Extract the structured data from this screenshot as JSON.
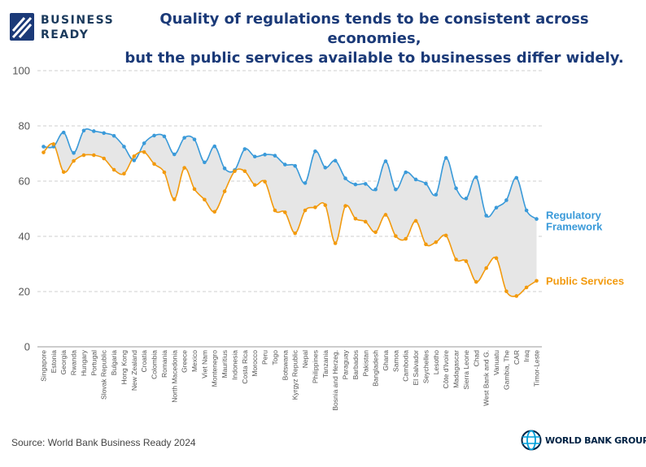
{
  "header": {
    "logo_line1": "BUSINESS",
    "logo_line2": "READY",
    "title_line1": "Quality of regulations tends to be consistent across economies,",
    "title_line2": "but the public services available to businesses differ widely."
  },
  "footer": {
    "source": "Source: World Bank Business Ready 2024",
    "wbg_label": "WORLD BANK GROUP"
  },
  "colors": {
    "regulatory": "#3a9ad9",
    "public": "#f29a0e",
    "fill": "#e6e6e6",
    "title": "#1b3a78"
  },
  "chart_data": {
    "type": "line",
    "ylim": [
      0,
      100
    ],
    "yticks": [
      0,
      20,
      40,
      60,
      80,
      100
    ],
    "grid": true,
    "categories": [
      "Singapore",
      "Estonia",
      "Georgia",
      "Rwanda",
      "Hungary",
      "Portugal",
      "Slovak Republic",
      "Bulgaria",
      "Hong Kong",
      "New Zealand",
      "Croatia",
      "Colombia",
      "Romania",
      "North Macedonia",
      "Greece",
      "Mexico",
      "Viet Nam",
      "Montenegro",
      "Mauritius",
      "Indonesia",
      "Costa Rica",
      "Morocco",
      "Peru",
      "Togo",
      "Botswana",
      "Kyrgyz Republic",
      "Nepal",
      "Philippines",
      "Tanzania",
      "Bosnia and Herzeg.",
      "Paraguay",
      "Barbados",
      "Pakistan",
      "Bangladesh",
      "Ghana",
      "Samoa",
      "Cambodia",
      "El Salvador",
      "Seychelles",
      "Lesotho",
      "Côte d'Ivoire",
      "Madagascar",
      "Sierra Leone",
      "Chad",
      "West Bank and G.",
      "Vanuatu",
      "Gambia, The",
      "CAR",
      "Iraq",
      "Timor-Leste"
    ],
    "series": [
      {
        "name": "Regulatory Framework",
        "values": [
          72.5,
          72.5,
          77.6,
          70.2,
          78.3,
          78.1,
          77.4,
          76.4,
          72.5,
          67.5,
          73.7,
          76.5,
          76.2,
          69.7,
          75.7,
          75.1,
          66.8,
          72.6,
          64.6,
          64.0,
          71.6,
          68.9,
          69.6,
          69.2,
          66.0,
          65.5,
          59.3,
          70.8,
          64.9,
          67.4,
          61.0,
          58.8,
          59.0,
          57.0,
          67.2,
          57.0,
          63.2,
          60.6,
          59.1,
          55.1,
          68.4,
          57.4,
          53.7,
          61.4,
          47.5,
          50.4,
          53.1,
          61.2,
          49.4,
          46.3
        ]
      },
      {
        "name": "Public Services",
        "values": [
          70.4,
          73.4,
          63.3,
          67.3,
          69.4,
          69.4,
          68.2,
          64.1,
          62.7,
          69.0,
          70.5,
          66.2,
          63.2,
          53.4,
          64.8,
          57.1,
          53.3,
          48.9,
          56.3,
          63.6,
          63.6,
          58.6,
          59.8,
          49.4,
          48.7,
          41.1,
          49.4,
          50.5,
          51.3,
          37.5,
          51.0,
          46.4,
          45.3,
          41.5,
          47.8,
          40.1,
          39.1,
          45.6,
          37.1,
          37.9,
          40.3,
          31.6,
          31.0,
          23.5,
          28.5,
          32.1,
          20.1,
          18.4,
          21.5,
          23.9
        ]
      }
    ]
  }
}
